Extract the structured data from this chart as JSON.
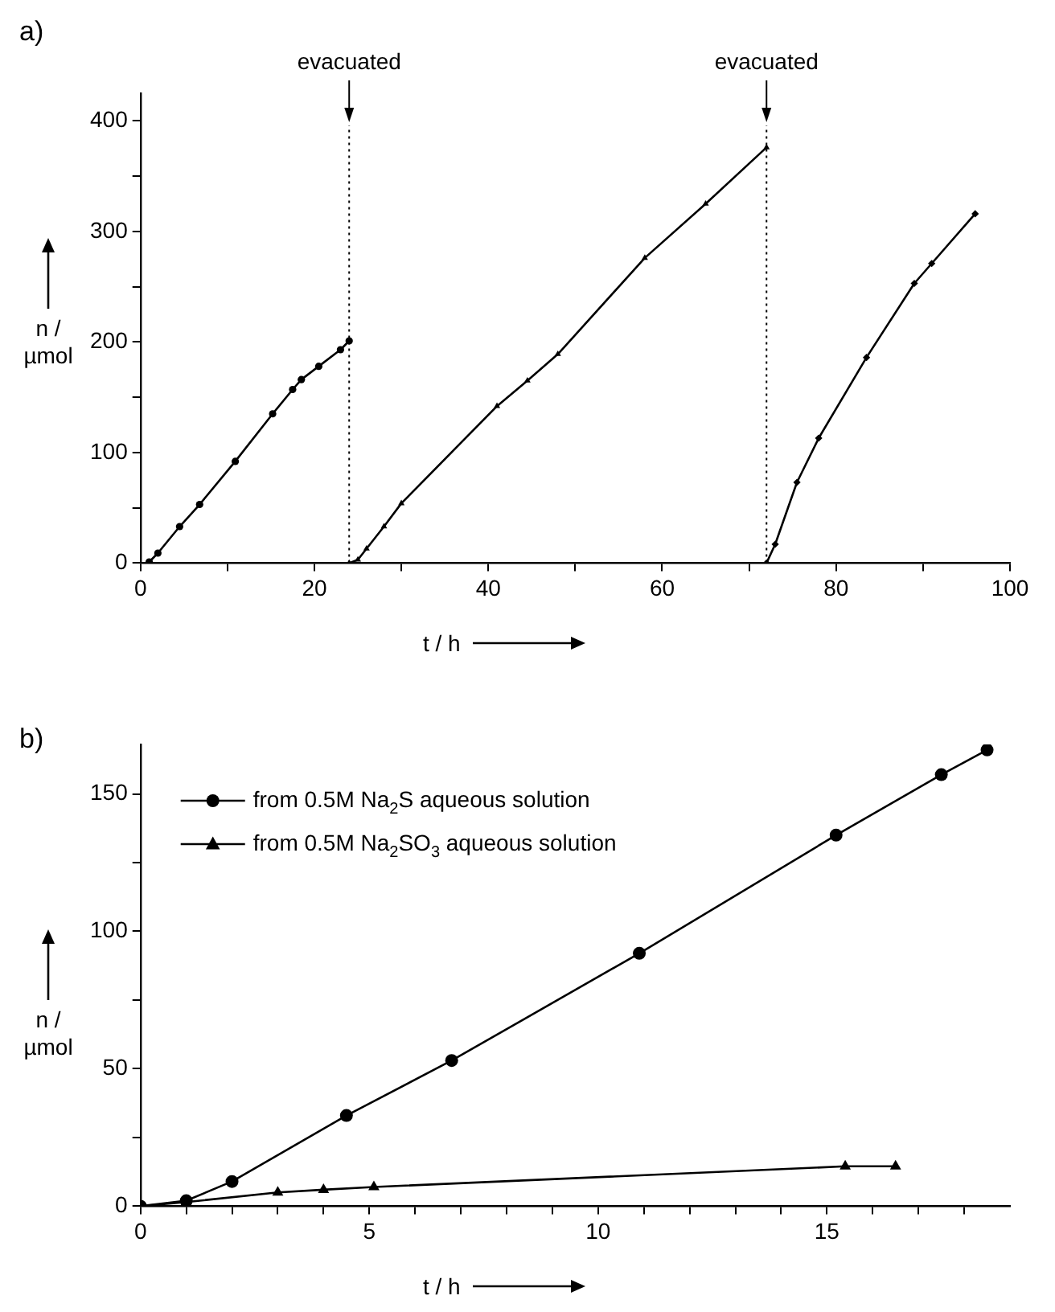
{
  "chart_data": [
    {
      "type": "line",
      "title": "a)",
      "xlabel": "t / h",
      "ylabel": "n /µmol",
      "xlim": [
        0,
        100
      ],
      "ylim": [
        0,
        425
      ],
      "xticks": [
        0,
        {
          "value": 10,
          "label": null
        },
        20,
        {
          "value": 30,
          "label": null
        },
        40,
        {
          "value": 50,
          "label": null
        },
        60,
        {
          "value": 70,
          "label": null
        },
        80,
        {
          "value": 90,
          "label": null
        },
        100
      ],
      "yticks": [
        0,
        {
          "value": 50,
          "label": null
        },
        100,
        {
          "value": 150,
          "label": null
        },
        200,
        {
          "value": 250,
          "label": null
        },
        300,
        {
          "value": 350,
          "label": null
        },
        400
      ],
      "grid": false,
      "legend": false,
      "line_style": "solid",
      "ref_lines": [
        {
          "axis": "x",
          "value": 24,
          "label": "evacuated",
          "line_style": "dotted",
          "color": "#000000"
        },
        {
          "axis": "x",
          "value": 72,
          "label": "evacuated",
          "line_style": "dotted",
          "color": "#000000"
        }
      ],
      "series": [
        {
          "color": "#000000",
          "marker": "circle",
          "x": [
            1,
            2,
            4.5,
            6.8,
            10.9,
            15.2,
            17.5,
            18.5,
            20.5,
            23,
            24
          ],
          "values": [
            1,
            9,
            33,
            53,
            92,
            135,
            157,
            166,
            178,
            193,
            201
          ]
        },
        {
          "color": "#000000",
          "marker": "triangle",
          "x": [
            24,
            25,
            26,
            28,
            30,
            41,
            44.5,
            48,
            58,
            65,
            72
          ],
          "values": [
            0,
            3,
            13,
            33,
            54,
            142,
            165,
            189,
            276,
            325,
            376
          ]
        },
        {
          "color": "#000000",
          "marker": "diamond",
          "x": [
            72,
            73,
            75.5,
            78,
            83.5,
            89,
            91,
            96
          ],
          "values": [
            0,
            17,
            73,
            113,
            186,
            253,
            271,
            316
          ]
        }
      ]
    },
    {
      "type": "line",
      "title": "b)",
      "xlabel": "t / h",
      "ylabel": "n /µmol",
      "xlim": [
        0,
        19
      ],
      "ylim": [
        0,
        168
      ],
      "xticks": [
        0,
        {
          "value": 1,
          "label": null
        },
        {
          "value": 2,
          "label": null
        },
        {
          "value": 3,
          "label": null
        },
        {
          "value": 4,
          "label": null
        },
        5,
        {
          "value": 6,
          "label": null
        },
        {
          "value": 7,
          "label": null
        },
        {
          "value": 8,
          "label": null
        },
        {
          "value": 9,
          "label": null
        },
        10,
        {
          "value": 11,
          "label": null
        },
        {
          "value": 12,
          "label": null
        },
        {
          "value": 13,
          "label": null
        },
        {
          "value": 14,
          "label": null
        },
        15,
        {
          "value": 16,
          "label": null
        },
        {
          "value": 17,
          "label": null
        },
        {
          "value": 18,
          "label": null
        }
      ],
      "yticks": [
        0,
        {
          "value": 25,
          "label": null
        },
        50,
        {
          "value": 75,
          "label": null
        },
        100,
        {
          "value": 125,
          "label": null
        },
        150
      ],
      "grid": false,
      "legend": "top left",
      "line_style": "solid",
      "series": [
        {
          "name": "from 0.5M Na$_{2}$S aqueous solution",
          "color": "#000000",
          "marker": "circle",
          "x": [
            0,
            1,
            2,
            4.5,
            6.8,
            10.9,
            15.2,
            17.5,
            18.5
          ],
          "values": [
            0,
            2,
            9,
            33,
            53,
            92,
            135,
            157,
            166
          ]
        },
        {
          "name": "from 0.5M Na$_{2}$SO$_{3}$ aqueous solution",
          "color": "#000000",
          "marker": "triangle",
          "x": [
            0,
            1,
            3,
            4,
            5.1,
            15.4,
            16.5
          ],
          "values": [
            0,
            1.5,
            5,
            6,
            7,
            14.5,
            14.5
          ]
        }
      ]
    }
  ]
}
